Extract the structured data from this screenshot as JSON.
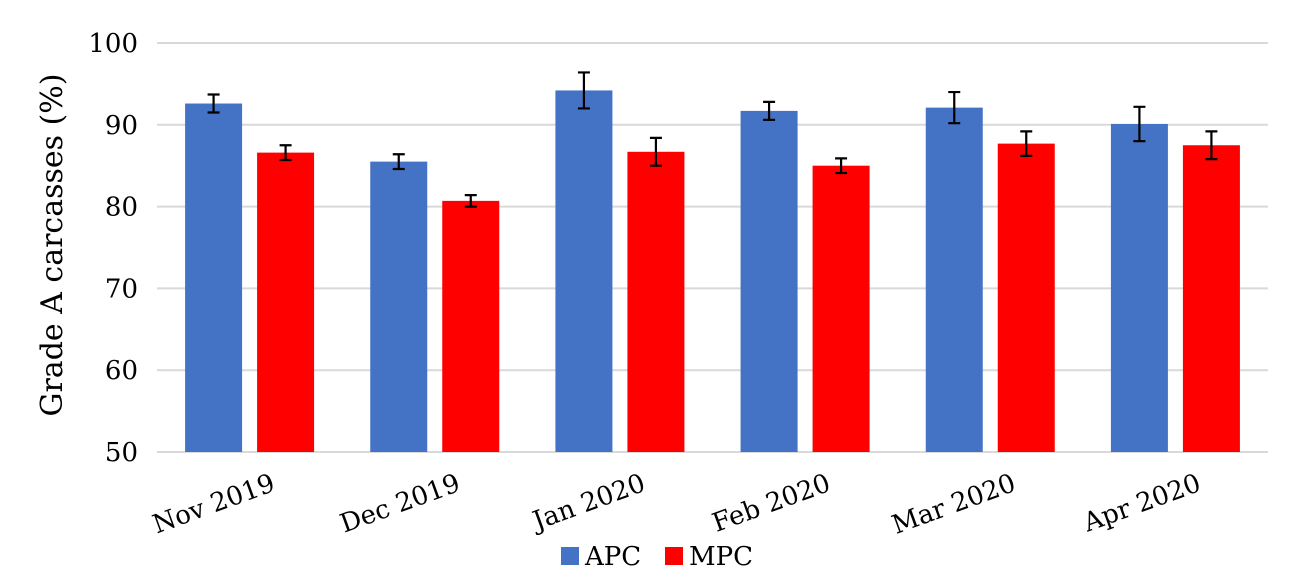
{
  "chart_data": {
    "type": "bar",
    "title": "",
    "xlabel": "",
    "ylabel": "Grade A carcasses (%)",
    "ylim": [
      50,
      100
    ],
    "yticks": [
      50,
      60,
      70,
      80,
      90,
      100
    ],
    "grid": true,
    "legend_position": "bottom-center",
    "categories": [
      "Nov 2019",
      "Dec 2019",
      "Jan 2020",
      "Feb 2020",
      "Mar 2020",
      "Apr 2020"
    ],
    "series": [
      {
        "name": "APC",
        "color": "#4472c4",
        "values": [
          92.6,
          85.5,
          94.2,
          91.7,
          92.1,
          90.1
        ],
        "errors": [
          1.1,
          0.9,
          2.2,
          1.1,
          1.9,
          2.1
        ]
      },
      {
        "name": "MPC",
        "color": "#ff0000",
        "values": [
          86.6,
          80.7,
          86.7,
          85.0,
          87.7,
          87.5
        ],
        "errors": [
          0.9,
          0.7,
          1.7,
          0.9,
          1.5,
          1.7
        ]
      }
    ]
  }
}
